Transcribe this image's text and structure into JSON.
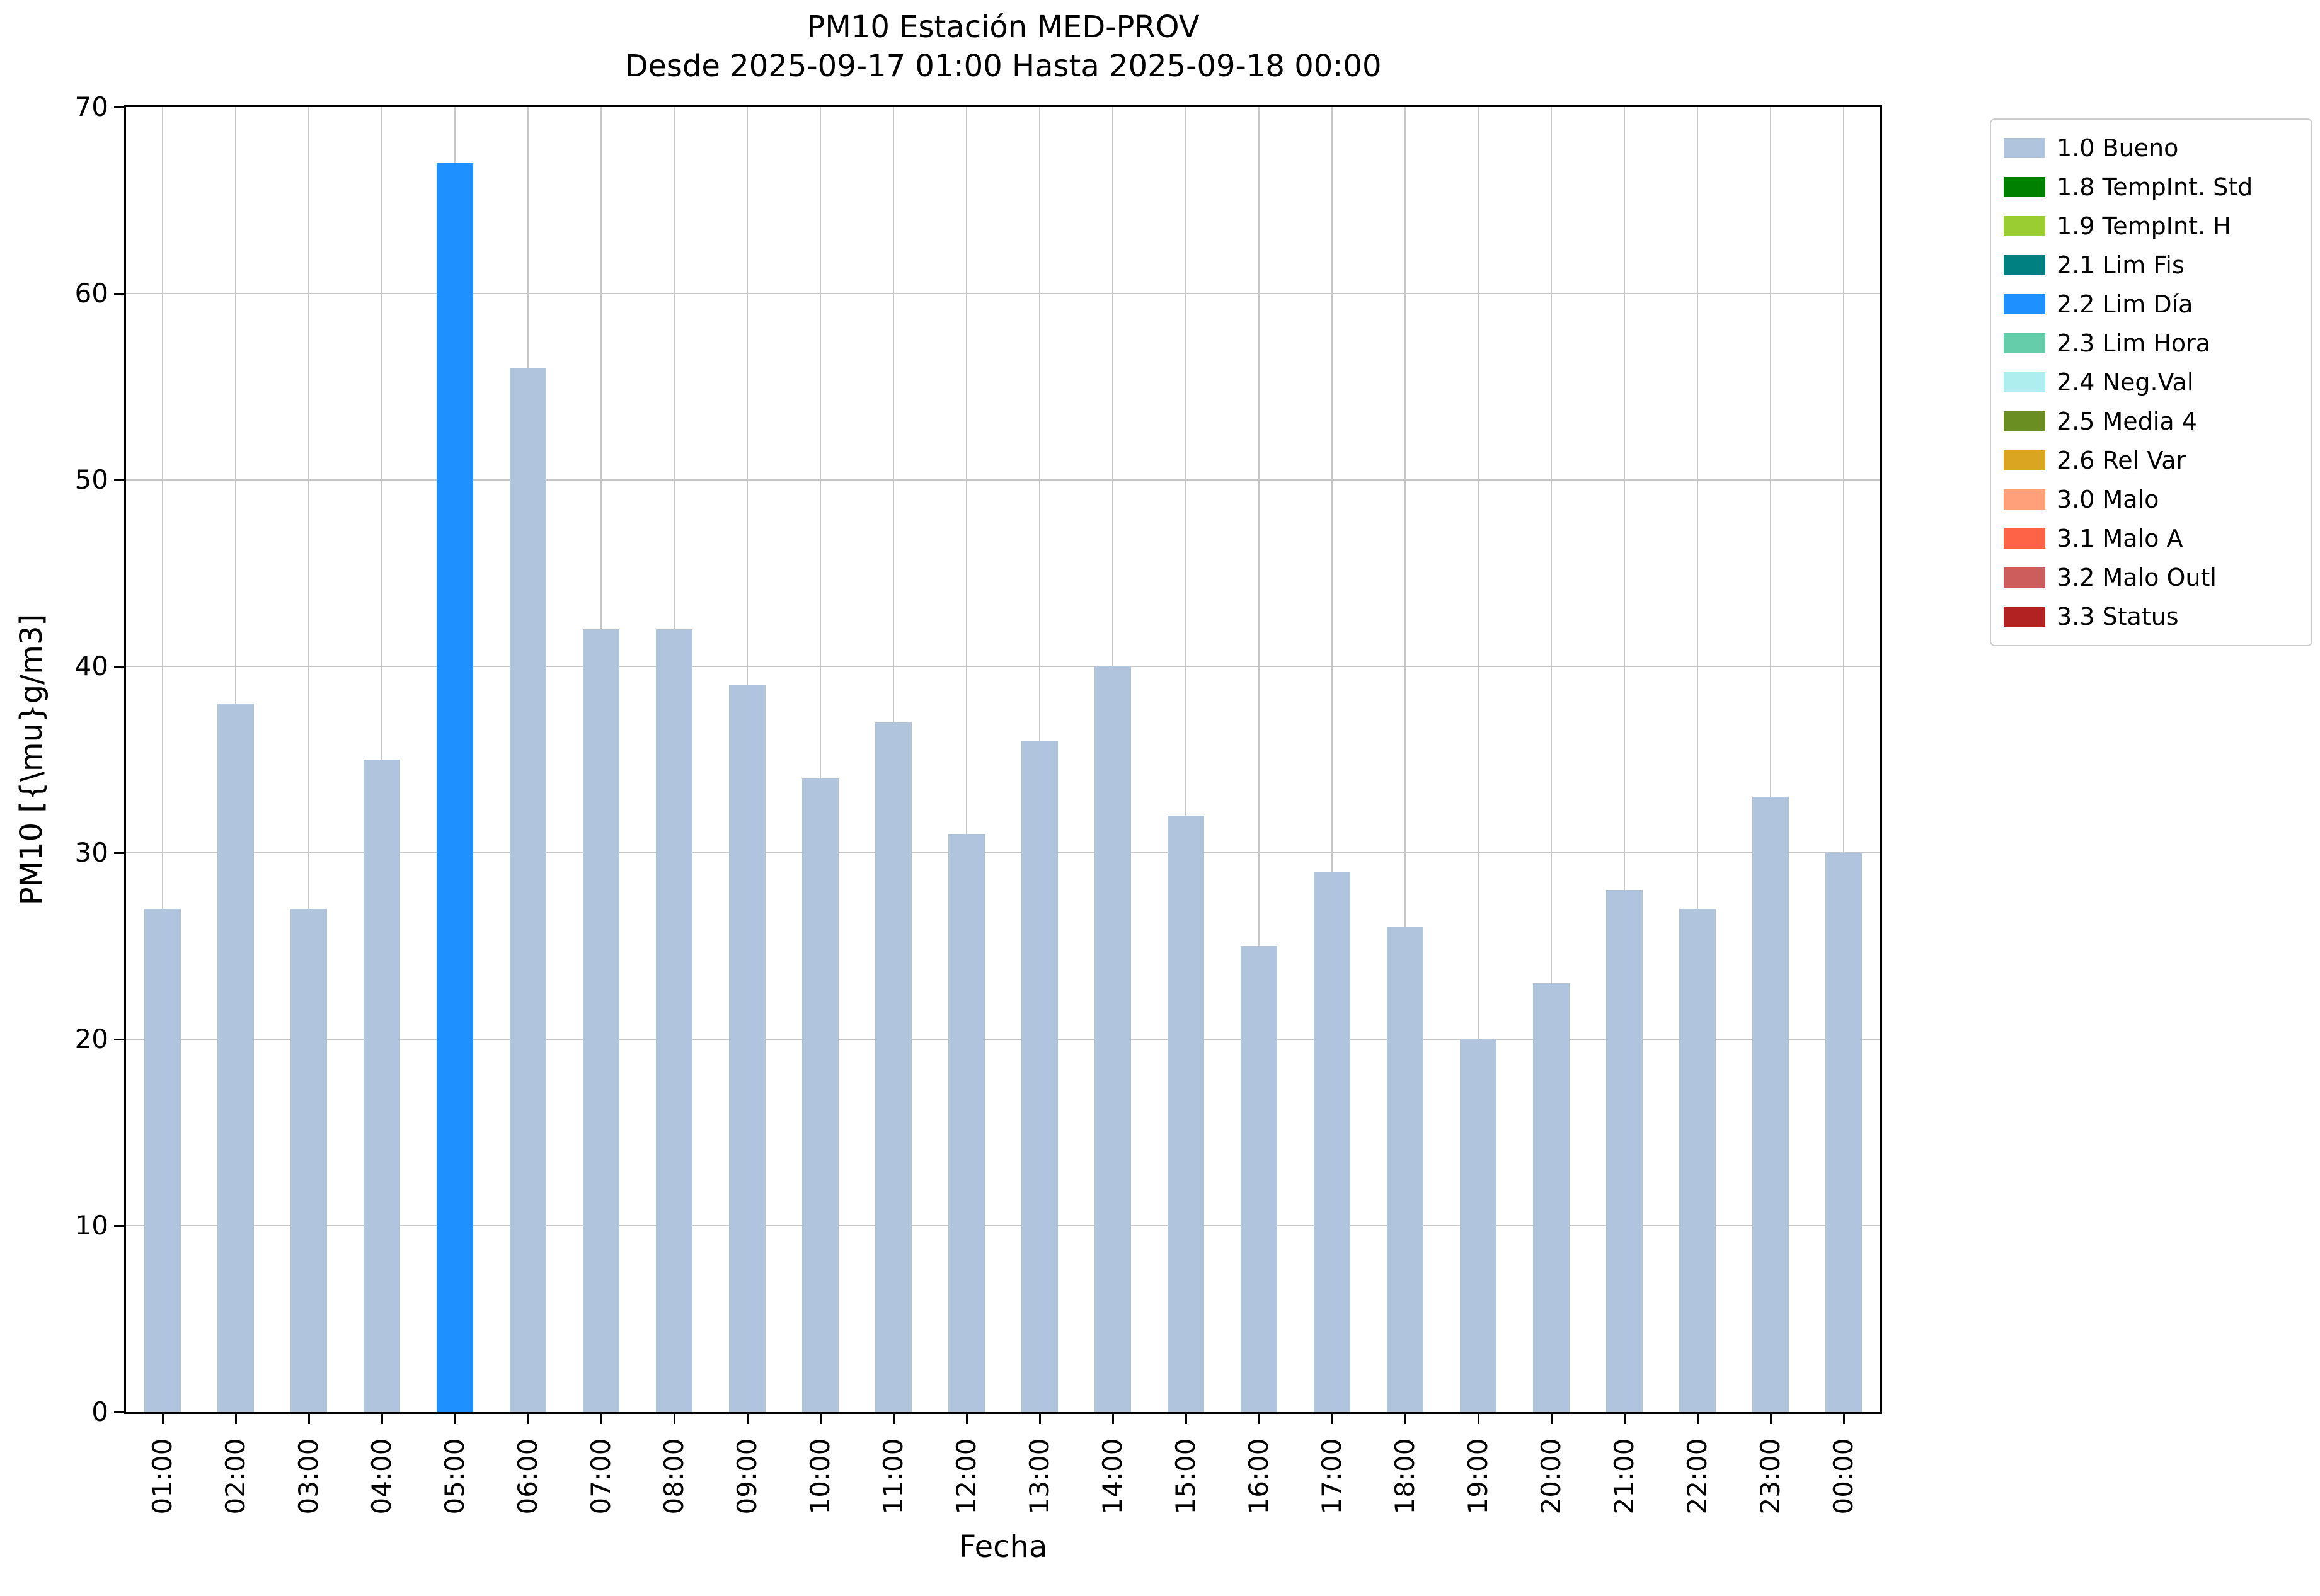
{
  "chart_data": {
    "type": "bar",
    "title": "PM10 Estación MED-PROV",
    "subtitle": "Desde 2025-09-17 01:00 Hasta 2025-09-18 00:00",
    "xlabel": "Fecha",
    "ylabel": "PM10 [{\\mu}g/m3]",
    "ylim": [
      0,
      70
    ],
    "yticks": [
      0,
      10,
      20,
      30,
      40,
      50,
      60,
      70
    ],
    "grid": true,
    "legend_position": "outside upper right",
    "categories": [
      "01:00",
      "02:00",
      "03:00",
      "04:00",
      "05:00",
      "06:00",
      "07:00",
      "08:00",
      "09:00",
      "10:00",
      "11:00",
      "12:00",
      "13:00",
      "14:00",
      "15:00",
      "16:00",
      "17:00",
      "18:00",
      "19:00",
      "20:00",
      "21:00",
      "22:00",
      "23:00",
      "00:00"
    ],
    "values": [
      27,
      38,
      27,
      35,
      67,
      56,
      42,
      42,
      39,
      34,
      37,
      31,
      36,
      40,
      32,
      25,
      29,
      26,
      20,
      23,
      28,
      27,
      33,
      30
    ],
    "bar_default_color": "#b0c4de",
    "bar_default_series": "1.0 Bueno",
    "bar_colors_by_index": {
      "4": "#1e90ff"
    },
    "bar_series_by_index": {
      "4": "2.2 Lim Día"
    },
    "legend": [
      {
        "label": "1.0 Bueno",
        "color": "#b0c4de"
      },
      {
        "label": "1.8 TempInt. Std",
        "color": "#008000"
      },
      {
        "label": "1.9 TempInt. H",
        "color": "#9acd32"
      },
      {
        "label": "2.1 Lim Fis",
        "color": "#008080"
      },
      {
        "label": "2.2 Lim Día",
        "color": "#1e90ff"
      },
      {
        "label": "2.3 Lim Hora",
        "color": "#66cdaa"
      },
      {
        "label": "2.4 Neg.Val",
        "color": "#afeeee"
      },
      {
        "label": "2.5 Media 4",
        "color": "#6b8e23"
      },
      {
        "label": "2.6 Rel Var",
        "color": "#daa520"
      },
      {
        "label": "3.0 Malo",
        "color": "#ffa07a"
      },
      {
        "label": "3.1 Malo A",
        "color": "#ff6347"
      },
      {
        "label": "3.2 Malo Outl",
        "color": "#cd5c5c"
      },
      {
        "label": "3.3 Status",
        "color": "#b22222"
      }
    ]
  }
}
